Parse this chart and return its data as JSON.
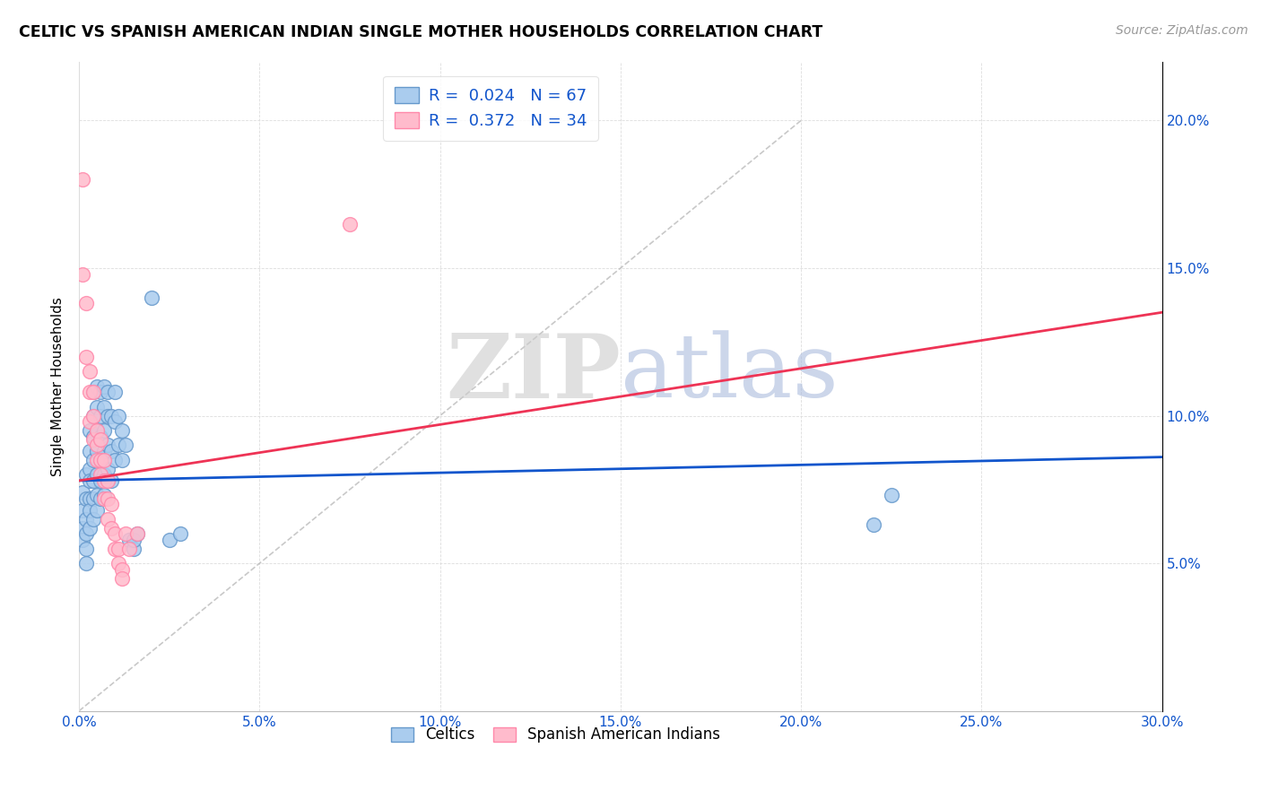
{
  "title": "CELTIC VS SPANISH AMERICAN INDIAN SINGLE MOTHER HOUSEHOLDS CORRELATION CHART",
  "source": "Source: ZipAtlas.com",
  "ylabel": "Single Mother Households",
  "xlim": [
    0.0,
    0.3
  ],
  "ylim": [
    0.0,
    0.22
  ],
  "xticks": [
    0.0,
    0.05,
    0.1,
    0.15,
    0.2,
    0.25,
    0.3
  ],
  "yticks": [
    0.05,
    0.1,
    0.15,
    0.2
  ],
  "celtic_color": "#6699CC",
  "celtic_color_fill": "#AACCEE",
  "pink_color": "#FF88AA",
  "pink_color_fill": "#FFBBCC",
  "diag_line_color": "#BBBBBB",
  "celtic_line_color": "#1155CC",
  "pink_line_color": "#EE3355",
  "legend_celtic_R": "0.024",
  "legend_celtic_N": "67",
  "legend_pink_R": "0.372",
  "legend_pink_N": "34",
  "watermark_zip": "ZIP",
  "watermark_atlas": "atlas",
  "watermark_color_zip": "#CCCCCC",
  "watermark_color_atlas": "#AABBDD",
  "celtics_data": [
    [
      0.001,
      0.074
    ],
    [
      0.001,
      0.068
    ],
    [
      0.001,
      0.062
    ],
    [
      0.001,
      0.058
    ],
    [
      0.002,
      0.08
    ],
    [
      0.002,
      0.072
    ],
    [
      0.002,
      0.065
    ],
    [
      0.002,
      0.06
    ],
    [
      0.002,
      0.055
    ],
    [
      0.002,
      0.05
    ],
    [
      0.003,
      0.095
    ],
    [
      0.003,
      0.088
    ],
    [
      0.003,
      0.082
    ],
    [
      0.003,
      0.078
    ],
    [
      0.003,
      0.072
    ],
    [
      0.003,
      0.068
    ],
    [
      0.003,
      0.062
    ],
    [
      0.004,
      0.108
    ],
    [
      0.004,
      0.1
    ],
    [
      0.004,
      0.093
    ],
    [
      0.004,
      0.085
    ],
    [
      0.004,
      0.078
    ],
    [
      0.004,
      0.072
    ],
    [
      0.004,
      0.065
    ],
    [
      0.005,
      0.11
    ],
    [
      0.005,
      0.103
    ],
    [
      0.005,
      0.095
    ],
    [
      0.005,
      0.088
    ],
    [
      0.005,
      0.08
    ],
    [
      0.005,
      0.073
    ],
    [
      0.005,
      0.068
    ],
    [
      0.006,
      0.108
    ],
    [
      0.006,
      0.1
    ],
    [
      0.006,
      0.093
    ],
    [
      0.006,
      0.085
    ],
    [
      0.006,
      0.078
    ],
    [
      0.006,
      0.072
    ],
    [
      0.007,
      0.11
    ],
    [
      0.007,
      0.103
    ],
    [
      0.007,
      0.095
    ],
    [
      0.007,
      0.088
    ],
    [
      0.007,
      0.08
    ],
    [
      0.007,
      0.073
    ],
    [
      0.008,
      0.108
    ],
    [
      0.008,
      0.1
    ],
    [
      0.008,
      0.09
    ],
    [
      0.008,
      0.082
    ],
    [
      0.009,
      0.1
    ],
    [
      0.009,
      0.088
    ],
    [
      0.009,
      0.078
    ],
    [
      0.01,
      0.108
    ],
    [
      0.01,
      0.098
    ],
    [
      0.01,
      0.085
    ],
    [
      0.011,
      0.1
    ],
    [
      0.011,
      0.09
    ],
    [
      0.012,
      0.095
    ],
    [
      0.012,
      0.085
    ],
    [
      0.013,
      0.09
    ],
    [
      0.014,
      0.058
    ],
    [
      0.015,
      0.055
    ],
    [
      0.015,
      0.058
    ],
    [
      0.016,
      0.06
    ],
    [
      0.02,
      0.14
    ],
    [
      0.025,
      0.058
    ],
    [
      0.028,
      0.06
    ],
    [
      0.22,
      0.063
    ],
    [
      0.225,
      0.073
    ]
  ],
  "spanish_ai_data": [
    [
      0.001,
      0.18
    ],
    [
      0.001,
      0.148
    ],
    [
      0.002,
      0.138
    ],
    [
      0.002,
      0.12
    ],
    [
      0.003,
      0.115
    ],
    [
      0.003,
      0.108
    ],
    [
      0.003,
      0.098
    ],
    [
      0.004,
      0.108
    ],
    [
      0.004,
      0.1
    ],
    [
      0.004,
      0.092
    ],
    [
      0.005,
      0.095
    ],
    [
      0.005,
      0.09
    ],
    [
      0.005,
      0.085
    ],
    [
      0.006,
      0.092
    ],
    [
      0.006,
      0.085
    ],
    [
      0.006,
      0.08
    ],
    [
      0.007,
      0.085
    ],
    [
      0.007,
      0.078
    ],
    [
      0.007,
      0.072
    ],
    [
      0.008,
      0.078
    ],
    [
      0.008,
      0.072
    ],
    [
      0.008,
      0.065
    ],
    [
      0.009,
      0.07
    ],
    [
      0.009,
      0.062
    ],
    [
      0.01,
      0.06
    ],
    [
      0.01,
      0.055
    ],
    [
      0.011,
      0.055
    ],
    [
      0.011,
      0.05
    ],
    [
      0.012,
      0.048
    ],
    [
      0.012,
      0.045
    ],
    [
      0.013,
      0.06
    ],
    [
      0.014,
      0.055
    ],
    [
      0.075,
      0.165
    ],
    [
      0.016,
      0.06
    ]
  ]
}
